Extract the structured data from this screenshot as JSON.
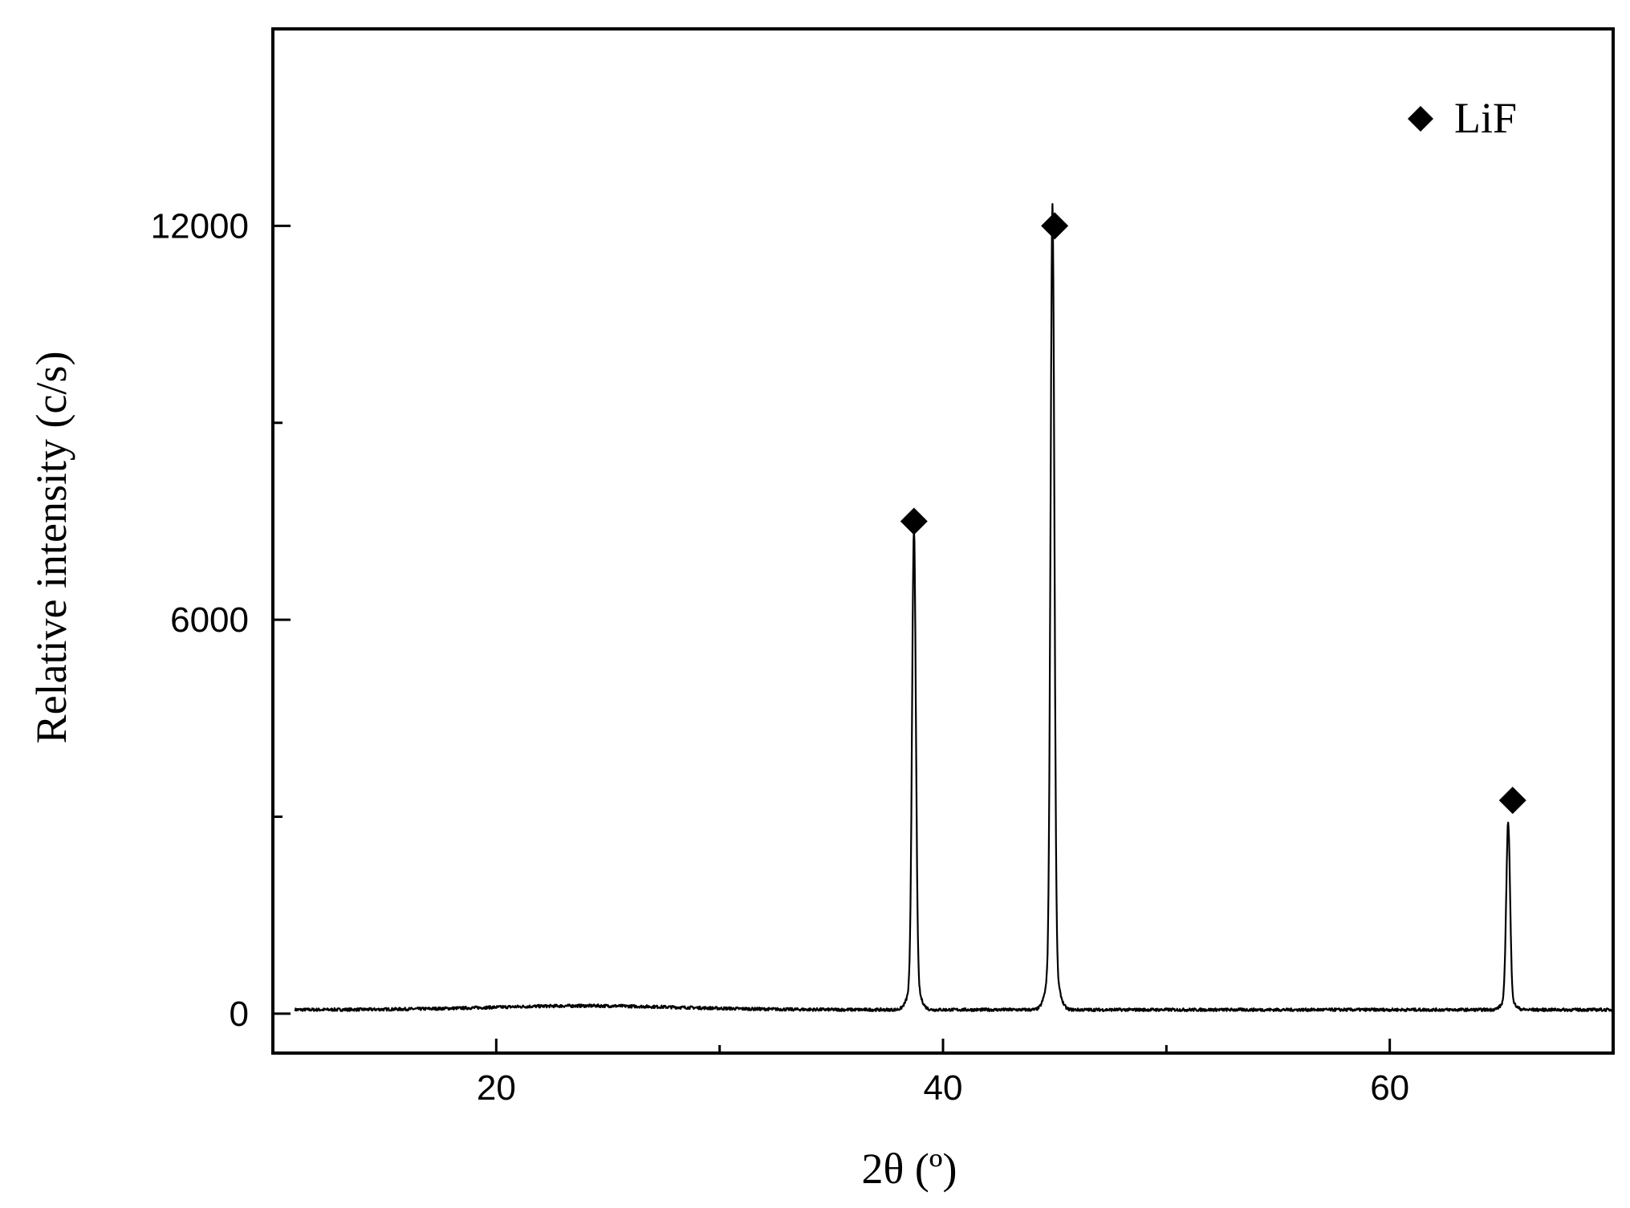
{
  "chart_data": {
    "type": "line",
    "xlabel": "2θ (º)",
    "ylabel": "Relative intensity (c/s)",
    "xlim": [
      10,
      70
    ],
    "ylim": [
      -600,
      15000
    ],
    "x_ticks": [
      {
        "value": 20,
        "label": "20"
      },
      {
        "value": 30,
        "label": ""
      },
      {
        "value": 40,
        "label": "40"
      },
      {
        "value": 50,
        "label": ""
      },
      {
        "value": 60,
        "label": "60"
      }
    ],
    "y_ticks": [
      {
        "value": 0,
        "label": "0"
      },
      {
        "value": 3000,
        "label": ""
      },
      {
        "value": 6000,
        "label": "6000"
      },
      {
        "value": 9000,
        "label": ""
      },
      {
        "value": 12000,
        "label": "12000"
      }
    ],
    "grid": false,
    "legend": {
      "position": "top-right",
      "entries": [
        {
          "label": "LiF",
          "marker": "diamond",
          "color": "#000000"
        }
      ]
    },
    "series": [
      {
        "color": "#000000",
        "baseline": 60,
        "peaks": [
          {
            "x": 38.7,
            "y": 6900
          },
          {
            "x": 44.9,
            "y": 11600
          },
          {
            "x": 65.3,
            "y": 2700
          }
        ]
      }
    ],
    "markers": [
      {
        "x": 38.7,
        "y": 7500,
        "symbol": "diamond"
      },
      {
        "x": 45.0,
        "y": 12000,
        "symbol": "diamond"
      },
      {
        "x": 65.5,
        "y": 3250,
        "symbol": "diamond"
      }
    ]
  }
}
